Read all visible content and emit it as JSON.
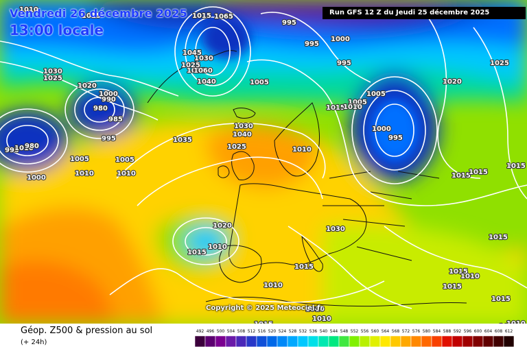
{
  "header": {
    "date_line": "Vendredi 26 décembre 2025",
    "time_line": "13:00 locale",
    "run_label": "Run GFS 12 Z du Jeudi 25 décembre 2025"
  },
  "copyright": "Copyright © 2025 Meteociel.fr",
  "footer": {
    "parameter_label": "Géop. Z500 & pression au sol",
    "step_label": "(+ 24h)"
  },
  "legend": {
    "ticks": [
      "492",
      "496",
      "500",
      "504",
      "508",
      "512",
      "516",
      "520",
      "524",
      "528",
      "532",
      "536",
      "540",
      "544",
      "548",
      "552",
      "556",
      "560",
      "564",
      "568",
      "572",
      "576",
      "580",
      "584",
      "588",
      "592",
      "596",
      "600",
      "604",
      "608",
      "612"
    ],
    "colors": [
      "#3b003b",
      "#5c0070",
      "#7a0090",
      "#6a1aa8",
      "#4a28b8",
      "#2838c8",
      "#1050d8",
      "#0068e8",
      "#0088f8",
      "#00a8ff",
      "#00c8ff",
      "#00e0e8",
      "#00e8b0",
      "#00e880",
      "#40e840",
      "#80f000",
      "#b8f000",
      "#e0f000",
      "#ffe800",
      "#ffc800",
      "#ffa800",
      "#ff8800",
      "#ff6800",
      "#f84000",
      "#e01000",
      "#c00000",
      "#a00000",
      "#800000",
      "#600000",
      "#400000",
      "#200000"
    ]
  },
  "map": {
    "colors": {
      "yellow": "#ffd200",
      "orange": "#ffa000",
      "deep_orange": "#ff7a00",
      "green": "#90e000",
      "lime": "#c8ec00",
      "teal": "#00d8a0",
      "cyan": "#00c8ff",
      "blue": "#0070ff",
      "navy": "#1030c0",
      "purple": "#5a18a8",
      "land_line": "#101010"
    },
    "pressure_labels": [
      {
        "text": "1010"
      },
      {
        "text": "1015"
      },
      {
        "text": "1030"
      },
      {
        "text": "1025"
      },
      {
        "text": "1020"
      },
      {
        "text": "1000"
      },
      {
        "text": "990"
      },
      {
        "text": "980"
      },
      {
        "text": "985"
      },
      {
        "text": "995"
      },
      {
        "text": "995"
      },
      {
        "text": "1010"
      },
      {
        "text": "980"
      },
      {
        "text": "1005"
      },
      {
        "text": "1010"
      },
      {
        "text": "1000"
      },
      {
        "text": "1005"
      },
      {
        "text": "1010"
      },
      {
        "text": "1015"
      },
      {
        "text": "1030"
      },
      {
        "text": "1025"
      },
      {
        "text": "1035"
      },
      {
        "text": "1040"
      },
      {
        "text": "1035"
      },
      {
        "text": "1025"
      },
      {
        "text": "1030"
      },
      {
        "text": "1040"
      },
      {
        "text": "1045"
      },
      {
        "text": "1065"
      },
      {
        "text": "1060"
      },
      {
        "text": "1005"
      },
      {
        "text": "995"
      },
      {
        "text": "995"
      },
      {
        "text": "1000"
      },
      {
        "text": "995"
      },
      {
        "text": "1005"
      },
      {
        "text": "1015"
      },
      {
        "text": "1010"
      },
      {
        "text": "1005"
      },
      {
        "text": "1000"
      },
      {
        "text": "995"
      },
      {
        "text": "1020"
      },
      {
        "text": "1025"
      },
      {
        "text": "1015"
      },
      {
        "text": "1015"
      },
      {
        "text": "1015"
      },
      {
        "text": "1030"
      },
      {
        "text": "1020"
      },
      {
        "text": "1015"
      },
      {
        "text": "1010"
      },
      {
        "text": "1015"
      },
      {
        "text": "1010"
      },
      {
        "text": "1015"
      },
      {
        "text": "1010"
      },
      {
        "text": "1015"
      },
      {
        "text": "1015"
      },
      {
        "text": "1015"
      },
      {
        "text": "1010"
      },
      {
        "text": "1010"
      },
      {
        "text": "1015"
      },
      {
        "text": "1015"
      },
      {
        "text": "1010"
      },
      {
        "text": "1010"
      }
    ]
  }
}
